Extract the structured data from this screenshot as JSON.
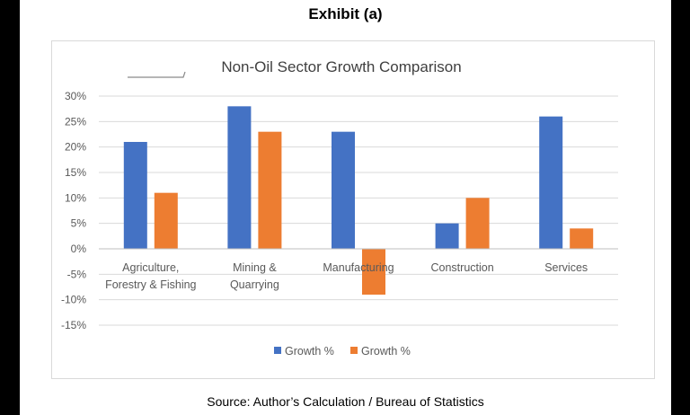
{
  "exhibit_title": "Exhibit (a)",
  "source_text": "Source: Author’s Calculation  / Bureau  of Statistics",
  "colors": {
    "series1": "#4472C4",
    "series2": "#ED7D31",
    "grid": "#d9d9d9",
    "text": "#595959"
  },
  "chart_data": {
    "type": "bar",
    "title": "Non-Oil Sector Growth Comparison",
    "categories": [
      [
        "Agriculture,",
        "Forestry & Fishing"
      ],
      [
        "Mining &",
        "Quarrying"
      ],
      [
        "Manufacturing"
      ],
      [
        "Construction"
      ],
      [
        "Services"
      ]
    ],
    "series": [
      {
        "name": "Growth %",
        "values": [
          21,
          28,
          23,
          5,
          26
        ]
      },
      {
        "name": "Growth %",
        "values": [
          11,
          23,
          -9,
          10,
          4
        ]
      }
    ],
    "ylim": [
      -15,
      30
    ],
    "yticks": [
      30,
      25,
      20,
      15,
      10,
      5,
      0,
      -5,
      -10,
      -15
    ],
    "ytick_suffix": "%",
    "grid": true,
    "legend_position": "bottom"
  }
}
